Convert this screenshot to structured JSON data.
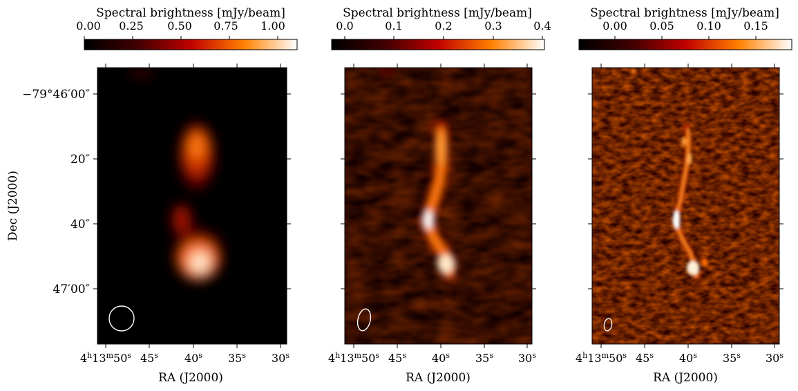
{
  "colorbar_label": "Spectral brightness [mJy/beam]",
  "colormap": "afmhot",
  "ylabel": "Dec (J2000)",
  "xlabel": "RA (J2000)",
  "x_ticks": [
    {
      "h": "4",
      "m": "13",
      "s": "50"
    },
    {
      "s": "45"
    },
    {
      "s": "40"
    },
    {
      "s": "35"
    },
    {
      "s": "30"
    }
  ],
  "y_ticks": [
    {
      "deg": "−79°",
      "arcmin": "46′",
      "arcsec": "00″"
    },
    {
      "arcsec": "20″"
    },
    {
      "arcsec": "40″"
    },
    {
      "arcmin": "47′",
      "arcsec": "00″"
    }
  ],
  "panels": [
    {
      "colorbar_ticks": [
        "0.00",
        "0.25",
        "0.50",
        "0.75",
        "1.00"
      ],
      "colorbar_range": [
        0.0,
        1.1
      ],
      "colorbar_tick_values": [
        0.0,
        0.25,
        0.5,
        0.75,
        1.0
      ],
      "resolution": "low",
      "beam": "large circle"
    },
    {
      "colorbar_ticks": [
        "0.0",
        "0.1",
        "0.2",
        "0.3",
        "0.4"
      ],
      "colorbar_range": [
        -0.02,
        0.41
      ],
      "colorbar_tick_values": [
        0.0,
        0.1,
        0.2,
        0.3,
        0.4
      ],
      "resolution": "medium",
      "beam": "ellipse"
    },
    {
      "colorbar_ticks": [
        "0.00",
        "0.05",
        "0.10",
        "0.15"
      ],
      "colorbar_range": [
        -0.035,
        0.19
      ],
      "colorbar_tick_values": [
        0.0,
        0.05,
        0.1,
        0.15
      ],
      "resolution": "high",
      "beam": "small ellipse"
    }
  ]
}
